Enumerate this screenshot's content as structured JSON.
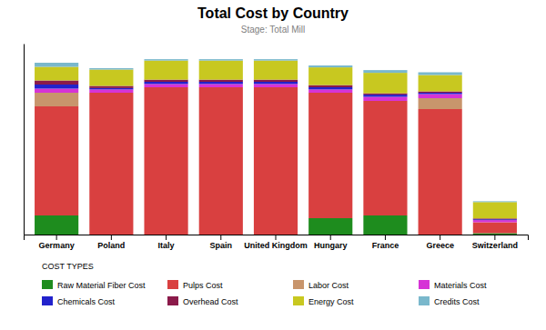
{
  "chart_data": {
    "type": "bar",
    "title": "Total Cost by Country",
    "subtitle": "Stage: Total Mill",
    "categories": [
      "Germany",
      "Poland",
      "Italy",
      "Spain",
      "United Kingdom",
      "Hungary",
      "France",
      "Greece",
      "Switzerland"
    ],
    "series": [
      {
        "name": "Raw Material Fiber Cost",
        "color": "#1e8c1e",
        "values": [
          7,
          0,
          0,
          0,
          0,
          6,
          7,
          0,
          0.5
        ]
      },
      {
        "name": "Pulps Cost",
        "color": "#d94040",
        "values": [
          40,
          52,
          54,
          54,
          54,
          46,
          42,
          46,
          4
        ]
      },
      {
        "name": "Labor Cost",
        "color": "#c8956c",
        "values": [
          5,
          0,
          0,
          0,
          0,
          0,
          0,
          4,
          0
        ]
      },
      {
        "name": "Materials Cost",
        "color": "#d633d6",
        "values": [
          1.5,
          1.2,
          1.2,
          1.2,
          1.2,
          1.2,
          1.5,
          1.5,
          0.8
        ]
      },
      {
        "name": "Chemicals Cost",
        "color": "#2222cc",
        "values": [
          1.5,
          0.5,
          0.8,
          0.8,
          0.8,
          0.8,
          0.8,
          0.5,
          0.3
        ]
      },
      {
        "name": "Overhead Cost",
        "color": "#8b1a4a",
        "values": [
          1.5,
          0.8,
          0.8,
          0.8,
          0.8,
          0.8,
          0.5,
          0.5,
          0.3
        ]
      },
      {
        "name": "Energy Cost",
        "color": "#c8c820",
        "values": [
          5,
          6,
          7,
          7,
          7,
          6.5,
          7.5,
          6,
          6
        ]
      },
      {
        "name": "Credits Cost",
        "color": "#7ab8cc",
        "values": [
          1.5,
          0.5,
          0.5,
          0.5,
          0.5,
          0.7,
          1.0,
          1.0,
          0.3
        ]
      }
    ],
    "stacked": true,
    "ylim": [
      0,
      70
    ],
    "tick_labels": "x",
    "legend": "bottom",
    "legend_title": "COST TYPES"
  }
}
